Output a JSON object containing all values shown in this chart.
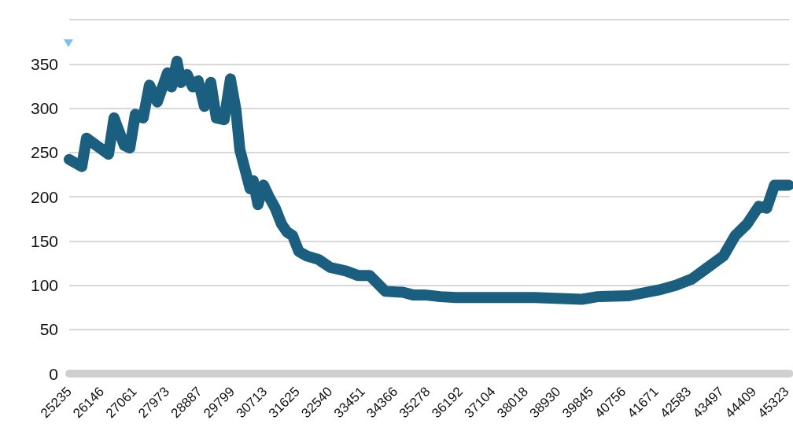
{
  "chart_data": {
    "type": "line",
    "line_style": "solid",
    "grid": "y",
    "xlim": [
      25235,
      45400
    ],
    "xticks": [
      25235,
      26146,
      27061,
      27973,
      28887,
      29799,
      30713,
      31625,
      32540,
      33451,
      34366,
      35278,
      36192,
      37104,
      38018,
      38930,
      39845,
      40756,
      41671,
      42583,
      43497,
      44409,
      45323
    ],
    "ylim": [
      0,
      400
    ],
    "yticks": [
      0,
      50,
      100,
      150,
      200,
      250,
      300,
      350,
      {
        "value": 400,
        "label": null
      }
    ],
    "series": [
      {
        "color": "#1a5f80",
        "x": [
          25235,
          25587,
          25719,
          26336,
          26490,
          26776,
          26931,
          27085,
          27305,
          27481,
          27701,
          27988,
          28098,
          28252,
          28362,
          28538,
          28692,
          28846,
          29022,
          29199,
          29353,
          29573,
          29749,
          29903,
          30013,
          30123,
          30300,
          30388,
          30520,
          30674,
          30828,
          31004,
          31180,
          31335,
          31489,
          31665,
          31885,
          32215,
          32545,
          32986,
          33316,
          33646,
          34087,
          34571,
          34857,
          35188,
          35628,
          36068,
          36949,
          38270,
          39591,
          40031,
          40912,
          41793,
          42233,
          42673,
          43113,
          43554,
          43884,
          44214,
          44545,
          44765,
          44985,
          45205,
          45381
        ],
        "values": [
          242,
          234,
          266,
          248,
          289,
          258,
          255,
          293,
          289,
          326,
          307,
          340,
          324,
          353,
          329,
          338,
          324,
          331,
          302,
          329,
          289,
          287,
          333,
          298,
          253,
          236,
          209,
          218,
          191,
          213,
          200,
          187,
          169,
          160,
          156,
          138,
          133,
          129,
          120,
          116,
          111,
          111,
          93,
          92,
          89,
          89,
          87,
          86,
          86,
          86,
          84,
          87,
          88,
          95,
          100,
          107,
          120,
          133,
          156,
          169,
          189,
          187,
          213,
          213,
          213
        ]
      }
    ]
  }
}
